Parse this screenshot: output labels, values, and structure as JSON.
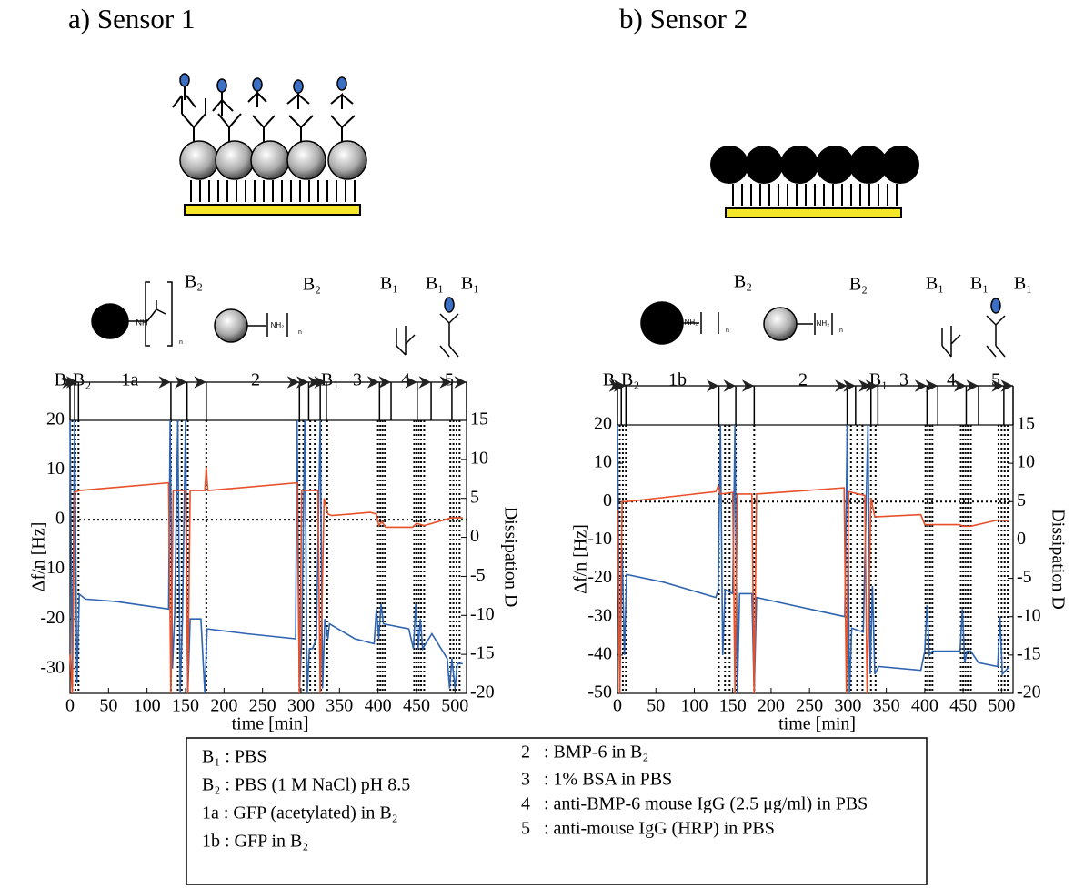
{
  "chart_data": [
    {
      "type": "line",
      "title": "a) Sensor 1",
      "xlabel": "time [min]",
      "ylabel": "Δf/n [Hz]",
      "y2label": "Dissipation D",
      "xlim": [
        0,
        515
      ],
      "xticks": [
        0,
        50,
        100,
        150,
        200,
        250,
        300,
        350,
        400,
        450,
        500
      ],
      "ylim": [
        -35,
        20
      ],
      "yticks": [
        -30,
        -20,
        -10,
        0,
        10,
        20
      ],
      "ycolor": "#3a82c4",
      "y2lim": [
        -20,
        15
      ],
      "y2ticks": [
        -20,
        -15,
        -10,
        -5,
        0,
        5,
        10,
        15
      ],
      "y2color": "#f0962e",
      "hline": 0,
      "steps": [
        0,
        6,
        11,
        131,
        152,
        177,
        298,
        310,
        325,
        333,
        402,
        417,
        451,
        469,
        496,
        515
      ],
      "events": [
        3,
        7,
        11,
        131,
        140,
        145,
        153,
        177,
        298,
        303,
        312,
        318,
        326,
        334,
        400,
        403,
        406,
        409,
        447,
        450,
        453,
        456,
        460,
        494,
        498,
        502,
        506
      ],
      "annotations": [
        "B₂",
        "B₂",
        "B₁",
        "B₁",
        "B₁",
        "B₁B₂",
        "1a",
        "2",
        "B₁",
        "3",
        "4",
        "5",
        "NH",
        "n",
        "NH₂",
        "n"
      ],
      "series": [
        {
          "color": "#2f64b0",
          "x": [
            0,
            3,
            6,
            9,
            12,
            20,
            60,
            128,
            130,
            133,
            136,
            140,
            143,
            146,
            150,
            153,
            156,
            170,
            175,
            178,
            230,
            293,
            295,
            298,
            301,
            305,
            308,
            311,
            315,
            320,
            325,
            328,
            331,
            335,
            337,
            370,
            395,
            398,
            401,
            404,
            407,
            440,
            446,
            449,
            452,
            455,
            458,
            470,
            490,
            493,
            496,
            500,
            503,
            510
          ],
          "values": [
            20,
            -33,
            20,
            -33,
            -15,
            -16,
            -16.5,
            -18,
            20,
            -30,
            -19,
            20,
            -35,
            -20,
            20,
            -35,
            -20,
            -20,
            -35,
            -22,
            -23,
            -24,
            20,
            -35,
            -24,
            20,
            -35,
            -26,
            -26,
            -24,
            20,
            -34,
            -20,
            -24,
            -21,
            -24,
            -25,
            -18,
            -24,
            -17,
            -21,
            -22,
            -26,
            -17,
            -26,
            -20,
            -26,
            -23,
            -28,
            -34,
            -28,
            -34,
            -29,
            -29
          ]
        },
        {
          "color": "#e8502a",
          "axis": "y2",
          "x": [
            0,
            3,
            6,
            12,
            128,
            131,
            134,
            150,
            153,
            156,
            175,
            177,
            179,
            295,
            298,
            301,
            322,
            325,
            330,
            335,
            340,
            390,
            398,
            401,
            405,
            410,
            445,
            450,
            460,
            495,
            510
          ],
          "values": [
            -15,
            -20,
            5.8,
            6,
            7,
            -20,
            6,
            6,
            -20,
            6,
            6,
            9,
            6,
            7,
            -20,
            6,
            6,
            -20,
            5,
            3,
            2.8,
            3.2,
            3,
            1.5,
            2,
            1.3,
            1.3,
            1.8,
            1.5,
            2.5,
            2.5
          ]
        }
      ]
    },
    {
      "type": "line",
      "title": "b) Sensor 2",
      "xlabel": "time [min]",
      "ylabel": "Δf/n [Hz]",
      "y2label": "Dissipation D",
      "xlim": [
        0,
        515
      ],
      "xticks": [
        0,
        50,
        100,
        150,
        200,
        250,
        300,
        350,
        400,
        450,
        500
      ],
      "ylim": [
        -50,
        20
      ],
      "yticks": [
        -50,
        -40,
        -30,
        -20,
        -10,
        0,
        10,
        20
      ],
      "ycolor": "#3a82c4",
      "y2lim": [
        -20,
        15
      ],
      "y2ticks": [
        -20,
        -15,
        -10,
        -5,
        0,
        5,
        10,
        15
      ],
      "y2color": "#f0962e",
      "hline": 0,
      "steps": [
        0,
        5,
        11,
        132,
        154,
        178,
        299,
        310,
        330,
        339,
        403,
        417,
        454,
        470,
        503,
        515
      ],
      "events": [
        3,
        7,
        11,
        132,
        140,
        146,
        154,
        178,
        299,
        304,
        312,
        319,
        330,
        336,
        401,
        404,
        407,
        410,
        447,
        450,
        453,
        456,
        460,
        496,
        500,
        504,
        508
      ],
      "annotations": [
        "B₂",
        "B₂",
        "B₁",
        "B₁",
        "B₁",
        "B₁B₂",
        "1b",
        "2",
        "B₁",
        "3",
        "4",
        "5",
        "NH₂",
        "n",
        "NH₂",
        "n"
      ],
      "series": [
        {
          "color": "#2f64b0",
          "x": [
            0,
            3,
            6,
            9,
            12,
            60,
            128,
            131,
            134,
            137,
            140,
            150,
            153,
            156,
            159,
            175,
            178,
            181,
            250,
            296,
            299,
            302,
            305,
            320,
            326,
            329,
            332,
            335,
            340,
            395,
            400,
            403,
            406,
            410,
            446,
            449,
            452,
            455,
            460,
            470,
            495,
            498,
            501,
            510
          ],
          "values": [
            20,
            -50,
            -12,
            -40,
            -19,
            -21,
            -25,
            -23,
            20,
            -40,
            -23,
            -24,
            20,
            -50,
            -24,
            -24,
            -50,
            -25,
            -28,
            -30,
            20,
            -50,
            -33,
            -34,
            20,
            -45,
            -22,
            -45,
            -43,
            -44,
            -39,
            -27,
            -40,
            -39,
            -39,
            -28,
            -42,
            -39,
            -39,
            -42,
            -43,
            -30,
            -45,
            -43
          ]
        },
        {
          "color": "#e8502a",
          "axis": "y2",
          "x": [
            0,
            3,
            6,
            12,
            128,
            131,
            134,
            150,
            153,
            156,
            175,
            178,
            181,
            295,
            298,
            301,
            322,
            325,
            330,
            335,
            395,
            400,
            445,
            450,
            460,
            495,
            510
          ],
          "values": [
            4,
            -20,
            5,
            5,
            6.3,
            7,
            6,
            6.2,
            -20,
            6,
            6,
            -20,
            6,
            6.8,
            -20,
            6.3,
            5.8,
            -20,
            5.5,
            3,
            3.3,
            2,
            2,
            1.8,
            1.8,
            2.6,
            2.5
          ]
        }
      ]
    }
  ],
  "legend_box": {
    "left": [
      "B₁ : PBS",
      "B₂ : PBS (1 M NaCl) pH 8.5",
      "1a : GFP (acetylated) in B₂",
      "1b : GFP in B₂"
    ],
    "right": [
      "2   : BMP-6 in B₂",
      "3   : 1% BSA in PBS",
      "4   : anti-BMP-6 mouse IgG (2.5 μg/ml) in PBS",
      "5   : anti-mouse IgG (HRP) in PBS"
    ]
  }
}
